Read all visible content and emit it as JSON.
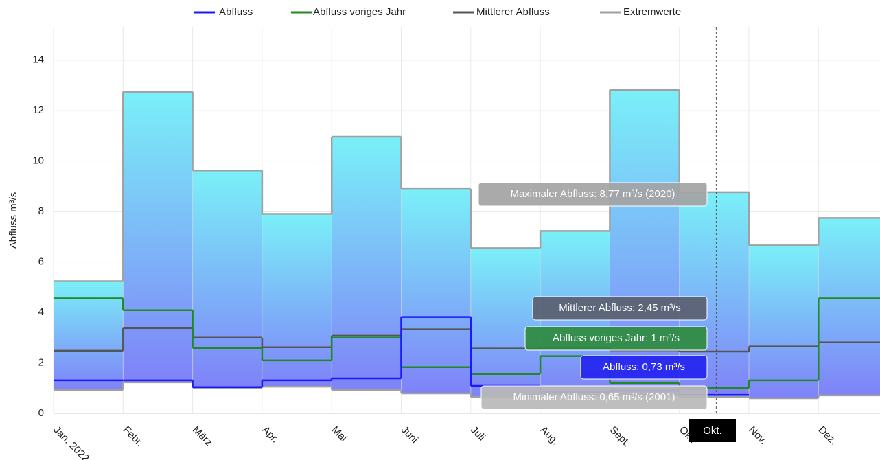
{
  "chart_data": {
    "type": "step",
    "y_label": "Abfluss m³/s",
    "categories": [
      "Jan. 2022",
      "Febr.",
      "März",
      "Apr.",
      "Mai",
      "Juni",
      "Juli",
      "Aug.",
      "Sept.",
      "Okt.",
      "Nov.",
      "Dez."
    ],
    "ylim": [
      0,
      15.3
    ],
    "yticks": [
      0,
      2,
      4,
      6,
      8,
      10,
      12,
      14
    ],
    "grid": true,
    "series": [
      {
        "name": "Abfluss",
        "color": "#1a1aff",
        "values": [
          1.31,
          1.31,
          1.04,
          1.31,
          1.39,
          3.82,
          1.09,
          0.85,
          0.9,
          0.73,
          null,
          null
        ]
      },
      {
        "name": "Abfluss voriges Jahr",
        "color": "#1f8a1f",
        "values": [
          4.56,
          4.09,
          2.59,
          2.1,
          3.0,
          1.83,
          1.56,
          2.27,
          1.2,
          1,
          1.31,
          4.56
        ]
      },
      {
        "name": "Mittlerer Abfluss",
        "color": "#555555",
        "values": [
          2.48,
          3.38,
          3.0,
          2.62,
          3.08,
          3.33,
          2.57,
          2.6,
          2.5,
          2.45,
          2.65,
          2.81
        ]
      },
      {
        "name": "Extremwerte",
        "color": "#a0a0a0",
        "max": [
          5.24,
          12.75,
          9.63,
          7.91,
          10.97,
          8.9,
          6.55,
          7.23,
          12.83,
          8.77,
          6.66,
          7.75
        ],
        "min": [
          0.93,
          1.23,
          1.01,
          1.06,
          0.93,
          0.79,
          0.65,
          0.7,
          0.7,
          0.65,
          0.6,
          0.71
        ]
      }
    ],
    "tooltips": [
      "Maximaler Abfluss: 8,77 m³/s (2020)",
      "Mittlerer Abfluss: 2,45 m³/s",
      "Abfluss voriges Jahr: 1 m³/s",
      "Abfluss: 0,73 m³/s",
      "Minimaler Abfluss: 0,65 m³/s (2001)"
    ],
    "highlight": 9
  }
}
